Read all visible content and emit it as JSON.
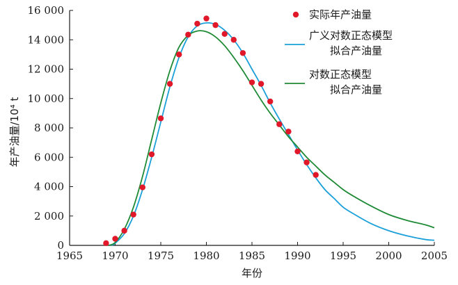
{
  "chart_data": {
    "type": "line",
    "title": "",
    "xlabel": "年份",
    "ylabel": "年产油量/10⁴ t",
    "xlim": [
      1965,
      2005
    ],
    "ylim": [
      0,
      16000
    ],
    "x_ticks": [
      1965,
      1970,
      1975,
      1980,
      1985,
      1990,
      1995,
      2000,
      2005
    ],
    "x_tick_labels": [
      "1965",
      "1970",
      "1975",
      "1980",
      "1985",
      "1990",
      "1995",
      "2000",
      "2005"
    ],
    "y_ticks": [
      0,
      2000,
      4000,
      6000,
      8000,
      10000,
      12000,
      14000,
      16000
    ],
    "y_tick_labels": [
      "0",
      "2 000",
      "4 000",
      "6 000",
      "8 000",
      "10 000",
      "12 000",
      "14 000",
      "16 000"
    ],
    "grid": false,
    "legend_position": "top-right",
    "series": [
      {
        "name": "实际年产油量",
        "legend_lines": [
          "实际年产油量"
        ],
        "style": "markers",
        "color": "#e0182a",
        "x": [
          1969,
          1970,
          1971,
          1972,
          1973,
          1974,
          1975,
          1976,
          1977,
          1978,
          1979,
          1980,
          1981,
          1982,
          1983,
          1984,
          1985,
          1986,
          1987,
          1988,
          1989,
          1990,
          1991,
          1992
        ],
        "y": [
          150,
          450,
          1000,
          2100,
          3950,
          6200,
          8650,
          11000,
          13000,
          14350,
          15100,
          15450,
          15000,
          14400,
          14000,
          13100,
          11100,
          11000,
          9800,
          8250,
          7750,
          6400,
          5650,
          4800
        ]
      },
      {
        "name": "广义对数正态模型拟合产油量",
        "legend_lines": [
          "广义对数正态模型",
          "拟合产油量"
        ],
        "style": "line",
        "color": "#1a9fd8",
        "x": [
          1969.6,
          1970,
          1971,
          1972,
          1973,
          1974,
          1975,
          1976,
          1977,
          1978,
          1979,
          1980,
          1981,
          1982,
          1983,
          1984,
          1985,
          1986,
          1987,
          1988,
          1989,
          1990,
          1991,
          1992,
          1993,
          1994,
          1995,
          1996,
          1998,
          2000,
          2002,
          2004,
          2005
        ],
        "y": [
          0,
          150,
          800,
          2000,
          3800,
          6000,
          8400,
          10800,
          12800,
          14200,
          14950,
          15150,
          15050,
          14650,
          14000,
          13100,
          12000,
          10900,
          9700,
          8600,
          7550,
          6500,
          5500,
          4600,
          3800,
          3200,
          2600,
          2200,
          1500,
          1000,
          650,
          400,
          350
        ]
      },
      {
        "name": "对数正态模型拟合产油量",
        "legend_lines": [
          "对数正态模型",
          "拟合产油量"
        ],
        "style": "line",
        "color": "#1f8a35",
        "x": [
          1969.3,
          1970,
          1971,
          1972,
          1973,
          1974,
          1975,
          1976,
          1977,
          1978,
          1979,
          1980,
          1981,
          1982,
          1983,
          1984,
          1985,
          1986,
          1987,
          1988,
          1989,
          1990,
          1991,
          1992,
          1993,
          1994,
          1995,
          1996,
          1998,
          2000,
          2002,
          2004,
          2005
        ],
        "y": [
          0,
          200,
          1100,
          2600,
          4700,
          7200,
          9700,
          11900,
          13500,
          14300,
          14600,
          14550,
          14200,
          13600,
          12800,
          11900,
          10900,
          9900,
          9000,
          8200,
          7400,
          6700,
          6000,
          5400,
          4800,
          4300,
          3800,
          3400,
          2700,
          2100,
          1700,
          1400,
          1200
        ]
      }
    ]
  }
}
